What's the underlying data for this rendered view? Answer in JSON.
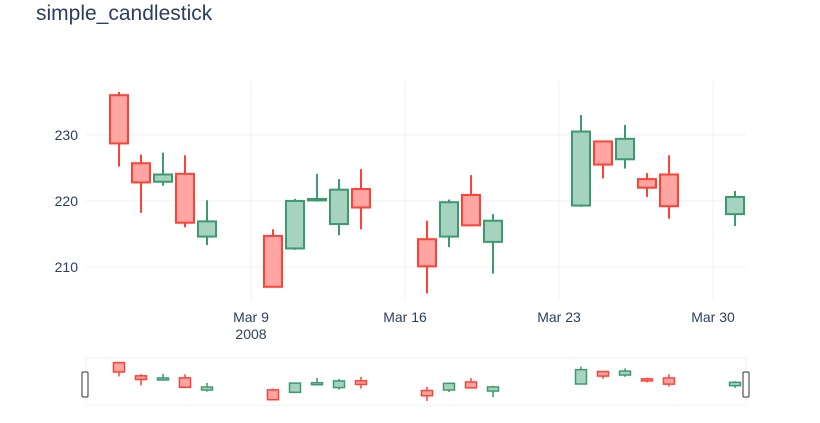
{
  "title": "simple_candlestick",
  "chart_data": {
    "type": "candlestick",
    "title": "simple_candlestick",
    "xlabel": "",
    "ylabel": "",
    "x_range": [
      "2008-03-02",
      "2008-03-31"
    ],
    "ylim": [
      205,
      238
    ],
    "y_ticks": [
      210,
      220,
      230
    ],
    "y_tick_labels": [
      "210",
      "220",
      "230"
    ],
    "x_ticks": [
      "2008-03-09",
      "2008-03-16",
      "2008-03-23",
      "2008-03-30"
    ],
    "x_tick_labels": [
      "Mar 9",
      "Mar 16",
      "Mar 23",
      "Mar 30"
    ],
    "x_tick_sublabel": "2008",
    "grid": true,
    "rangeslider": true,
    "increasing_color": "#3d9970",
    "decreasing_color": "#ff4136",
    "increasing_fill": "#a6d3bf",
    "decreasing_fill": "#ffa6a3",
    "candles": [
      {
        "date": "2008-03-03",
        "open": 236.0,
        "high": 236.5,
        "low": 225.2,
        "close": 228.7
      },
      {
        "date": "2008-03-04",
        "open": 225.7,
        "high": 227.0,
        "low": 218.2,
        "close": 222.8
      },
      {
        "date": "2008-03-05",
        "open": 222.9,
        "high": 227.3,
        "low": 222.3,
        "close": 224.0
      },
      {
        "date": "2008-03-06",
        "open": 224.1,
        "high": 226.9,
        "low": 216.0,
        "close": 216.7
      },
      {
        "date": "2008-03-07",
        "open": 214.6,
        "high": 220.1,
        "low": 213.3,
        "close": 216.9
      },
      {
        "date": "2008-03-10",
        "open": 214.7,
        "high": 215.7,
        "low": 206.9,
        "close": 207.0
      },
      {
        "date": "2008-03-11",
        "open": 212.8,
        "high": 220.3,
        "low": 212.6,
        "close": 220.0
      },
      {
        "date": "2008-03-12",
        "open": 220.1,
        "high": 224.1,
        "low": 219.9,
        "close": 220.3
      },
      {
        "date": "2008-03-13",
        "open": 216.5,
        "high": 223.3,
        "low": 214.8,
        "close": 221.7
      },
      {
        "date": "2008-03-14",
        "open": 221.8,
        "high": 224.8,
        "low": 215.7,
        "close": 219.0
      },
      {
        "date": "2008-03-17",
        "open": 214.2,
        "high": 217.0,
        "low": 206.0,
        "close": 210.1
      },
      {
        "date": "2008-03-18",
        "open": 214.6,
        "high": 220.2,
        "low": 213.0,
        "close": 219.8
      },
      {
        "date": "2008-03-19",
        "open": 220.9,
        "high": 223.9,
        "low": 216.2,
        "close": 216.3
      },
      {
        "date": "2008-03-20",
        "open": 213.8,
        "high": 218.0,
        "low": 209.0,
        "close": 217.0
      },
      {
        "date": "2008-03-24",
        "open": 219.3,
        "high": 233.0,
        "low": 219.1,
        "close": 230.5
      },
      {
        "date": "2008-03-25",
        "open": 229.0,
        "high": 229.0,
        "low": 223.4,
        "close": 225.5
      },
      {
        "date": "2008-03-26",
        "open": 226.3,
        "high": 231.5,
        "low": 224.9,
        "close": 229.4
      },
      {
        "date": "2008-03-27",
        "open": 223.3,
        "high": 224.2,
        "low": 220.6,
        "close": 222.0
      },
      {
        "date": "2008-03-28",
        "open": 224.0,
        "high": 226.9,
        "low": 217.3,
        "close": 219.2
      },
      {
        "date": "2008-03-31",
        "open": 218.0,
        "high": 221.5,
        "low": 216.2,
        "close": 220.6
      }
    ]
  }
}
